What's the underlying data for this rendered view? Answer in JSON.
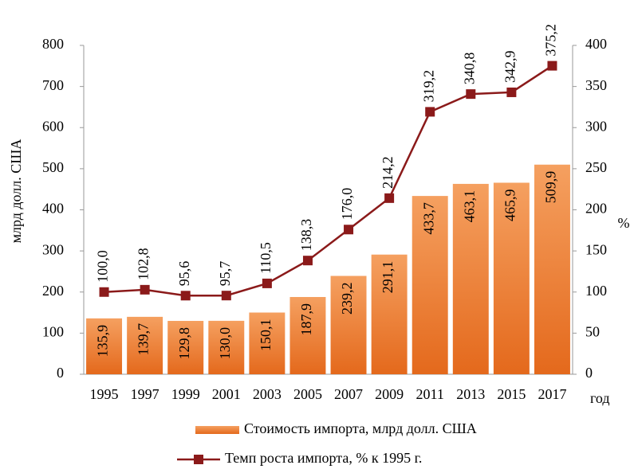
{
  "chart_data": {
    "type": "bar",
    "categories": [
      "1995",
      "1997",
      "1999",
      "2001",
      "2003",
      "2005",
      "2007",
      "2009",
      "2011",
      "2013",
      "2015",
      "2017"
    ],
    "series": [
      {
        "name": "Стоимость импорта, млрд долл. США",
        "type": "bar",
        "color": "#ee7f32",
        "values": [
          135.9,
          139.7,
          129.8,
          130.0,
          150.1,
          187.9,
          239.2,
          291.1,
          433.7,
          463.1,
          465.9,
          509.9
        ],
        "value_labels": [
          "135,9",
          "139,7",
          "129,8",
          "130,0",
          "150,1",
          "187,9",
          "239,2",
          "291,1",
          "433,7",
          "463,1",
          "465,9",
          "509,9"
        ]
      },
      {
        "name": "Темп роста импорта, % к 1995 г.",
        "type": "line",
        "axis": "y2",
        "color": "#8b1a1a",
        "values": [
          100.0,
          102.8,
          95.6,
          95.7,
          110.5,
          138.3,
          176.0,
          214.2,
          319.2,
          340.8,
          342.9,
          375.2
        ],
        "value_labels": [
          "100,0",
          "102,8",
          "95,6",
          "95,7",
          "110,5",
          "138,3",
          "176,0",
          "214,2",
          "319,2",
          "340,8",
          "342,9",
          "375,2"
        ]
      }
    ],
    "ylabel": "млрд долл. США",
    "y2label": "%",
    "xlabel": "год",
    "ylim": [
      0,
      800
    ],
    "yticks": [
      0,
      100,
      200,
      300,
      400,
      500,
      600,
      700,
      800
    ],
    "y2lim": [
      0,
      400
    ],
    "y2ticks": [
      0,
      50,
      100,
      150,
      200,
      250,
      300,
      350,
      400
    ]
  }
}
